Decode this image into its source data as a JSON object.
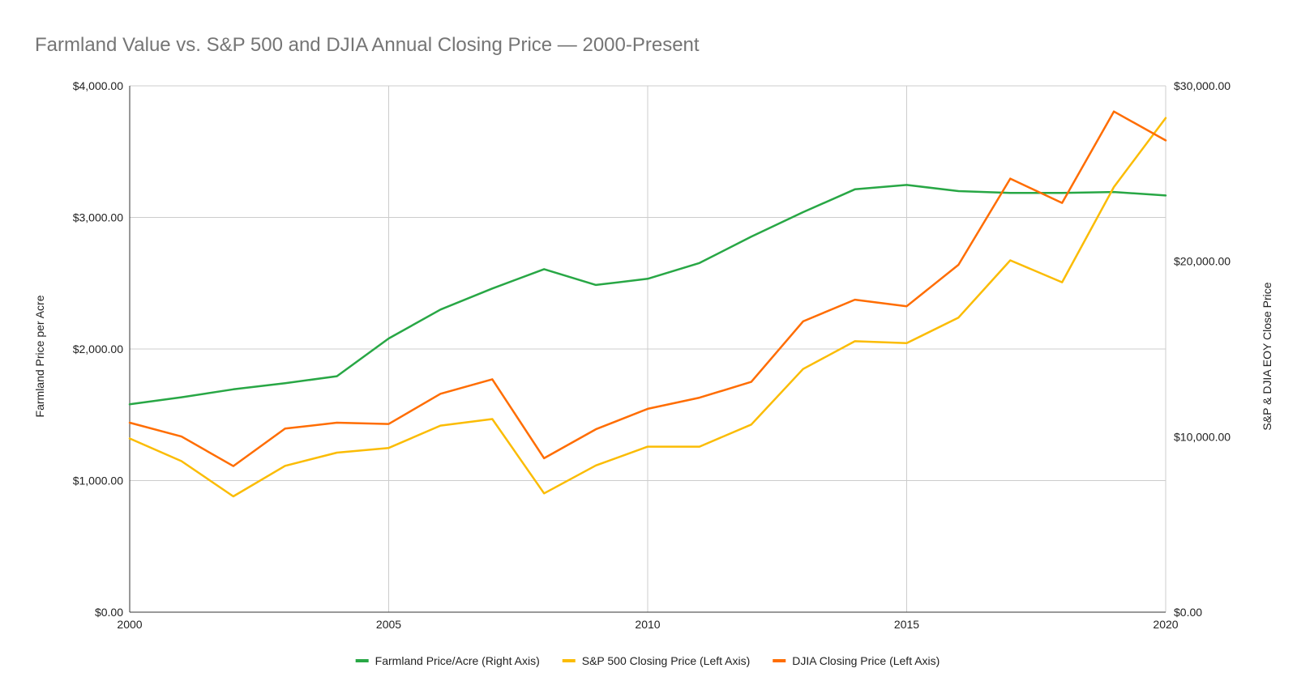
{
  "chart_data": {
    "type": "line",
    "title": "Farmland Value vs. S&P 500 and DJIA Annual Closing Price — 2000-Present",
    "xlabel": "",
    "ylabel_left": "Farmland Price per Acre",
    "ylabel_right": "S&P & DJIA EOY Close Price",
    "xlim": [
      2000,
      2020
    ],
    "x_ticks": [
      2000,
      2005,
      2010,
      2015,
      2020
    ],
    "x_tick_labels": [
      "2000",
      "2005",
      "2010",
      "2015",
      "2020"
    ],
    "ylim_left": [
      0,
      4000
    ],
    "y_ticks_left": [
      0,
      1000,
      2000,
      3000,
      4000
    ],
    "y_tick_labels_left": [
      "$0.00",
      "$1,000.00",
      "$2,000.00",
      "$3,000.00",
      "$4,000.00"
    ],
    "ylim_right": [
      0,
      30000
    ],
    "y_ticks_right": [
      0,
      10000,
      20000,
      30000
    ],
    "y_tick_labels_right": [
      "$0.00",
      "$10,000.00",
      "$20,000.00",
      "$30,000.00"
    ],
    "grid": true,
    "legend_position": "bottom",
    "x": [
      2000,
      2001,
      2002,
      2003,
      2004,
      2005,
      2006,
      2007,
      2008,
      2009,
      2010,
      2011,
      2012,
      2013,
      2014,
      2015,
      2016,
      2017,
      2018,
      2019,
      2020
    ],
    "series": [
      {
        "name": "Farmland Price/Acre (Right Axis)",
        "color": "#28a745",
        "axis": "right",
        "values": [
          11850,
          12250,
          12700,
          13050,
          13450,
          15600,
          17250,
          18450,
          19550,
          18650,
          19000,
          19900,
          21400,
          22800,
          24100,
          24350,
          24000,
          23900,
          23900,
          23950,
          23750
        ]
      },
      {
        "name": "S&P 500 Closing Price (Left Axis)",
        "color": "#fbbc04",
        "axis": "left",
        "values": [
          1320,
          1148,
          880,
          1112,
          1212,
          1248,
          1418,
          1468,
          903,
          1115,
          1258,
          1258,
          1426,
          1848,
          2059,
          2044,
          2239,
          2674,
          2507,
          3231,
          3756
        ]
      },
      {
        "name": "DJIA Closing Price (Left Axis)",
        "color": "#ff6d01",
        "axis": "left",
        "values": [
          1440,
          1335,
          1110,
          1395,
          1440,
          1430,
          1660,
          1770,
          1170,
          1390,
          1545,
          1630,
          1750,
          2210,
          2375,
          2325,
          2640,
          3295,
          3110,
          3805,
          3585
        ]
      }
    ]
  }
}
